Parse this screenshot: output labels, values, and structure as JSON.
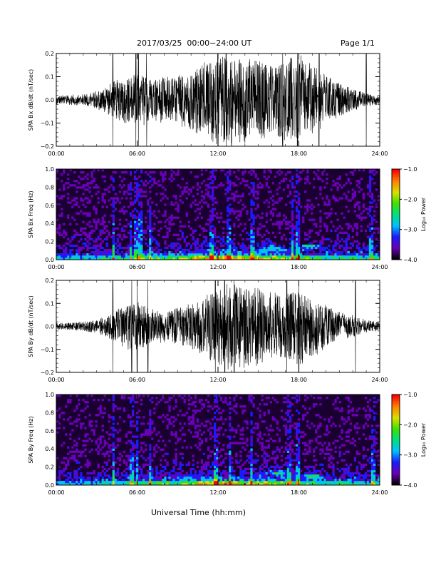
{
  "header": {
    "date_range": "2017/03/25  00:00−24:00 UT",
    "page": "Page 1/1"
  },
  "x_axis_title": "Universal Time (hh:mm)",
  "colors": {
    "trace": "#000000",
    "spec_bg": "#1a0030"
  },
  "colorbar": {
    "label": "Log₁₀ Power",
    "ticks": [
      "−1.0",
      "−2.0",
      "−3.0",
      "−4.0"
    ],
    "range": [
      -4.0,
      -1.0
    ],
    "colors": [
      "#000000",
      "#6a00b8",
      "#1a1aff",
      "#00c0ff",
      "#00e080",
      "#40e000",
      "#d8e000",
      "#ff8000",
      "#ff0000"
    ]
  },
  "chart_data": [
    {
      "type": "line",
      "ylabel": "SPA Bx dB/dt (nT/sec)",
      "ylim": [
        -0.2,
        0.2
      ],
      "yticks": [
        "0.2",
        "0.1",
        "0.0",
        "−0.1",
        "−0.2"
      ],
      "xticks": [
        "00:00",
        "06:00",
        "12:00",
        "18:00",
        "24:00"
      ],
      "envelope": {
        "hours": [
          0,
          2,
          3,
          4.2,
          5,
          6,
          7,
          8,
          9,
          10,
          11,
          12,
          13,
          14,
          15,
          16,
          17,
          18,
          19,
          20,
          21,
          22,
          23,
          24
        ],
        "amplitude": [
          0.02,
          0.025,
          0.04,
          0.08,
          0.1,
          0.12,
          0.1,
          0.1,
          0.11,
          0.13,
          0.17,
          0.2,
          0.2,
          0.19,
          0.18,
          0.16,
          0.18,
          0.2,
          0.15,
          0.11,
          0.08,
          0.05,
          0.03,
          0.02
        ]
      },
      "spikes_hours": [
        4.2,
        5.9,
        6.1,
        6.7,
        12.0,
        12.6,
        16.8,
        17.9,
        19.5,
        23.0
      ]
    },
    {
      "type": "heatmap",
      "ylabel": "SPA Bx Freq (Hz)",
      "ylim": [
        0,
        1.0
      ],
      "yticks": [
        "1.0",
        "0.8",
        "0.6",
        "0.4",
        "0.2",
        "0.0"
      ],
      "xticks": [
        "00:00",
        "06:00",
        "12:00",
        "18:00",
        "24:00"
      ],
      "bright_columns_hours": [
        4.2,
        5.5,
        5.9,
        6.2,
        7.0,
        11.5,
        12.8,
        14.6,
        17.5,
        17.9,
        23.4
      ],
      "blob_features": [
        {
          "hour": 16.0,
          "freq": 0.12
        },
        {
          "hour": 18.8,
          "freq": 0.15
        }
      ]
    },
    {
      "type": "line",
      "ylabel": "SPA By dB/dt (nT/sec)",
      "ylim": [
        -0.2,
        0.2
      ],
      "yticks": [
        "0.2",
        "0.1",
        "0.0",
        "−0.1",
        "−0.2"
      ],
      "xticks": [
        "00:00",
        "06:00",
        "12:00",
        "18:00",
        "24:00"
      ],
      "envelope": {
        "hours": [
          0,
          2,
          3,
          4.2,
          5,
          6,
          7,
          8,
          9,
          10,
          11,
          12,
          13,
          14,
          15,
          16,
          17,
          18,
          19,
          20,
          21,
          22,
          23,
          24
        ],
        "amplitude": [
          0.015,
          0.02,
          0.03,
          0.06,
          0.1,
          0.11,
          0.08,
          0.07,
          0.08,
          0.1,
          0.13,
          0.18,
          0.2,
          0.18,
          0.17,
          0.15,
          0.16,
          0.17,
          0.14,
          0.1,
          0.07,
          0.05,
          0.03,
          0.02
        ]
      },
      "spikes_hours": [
        4.2,
        5.6,
        6.0,
        6.8,
        11.8,
        12.5,
        13.2,
        17.1,
        18.0,
        22.2
      ]
    },
    {
      "type": "heatmap",
      "ylabel": "SPA By Freq (Hz)",
      "ylim": [
        0,
        1.0
      ],
      "yticks": [
        "1.0",
        "0.8",
        "0.6",
        "0.4",
        "0.2",
        "0.0"
      ],
      "xticks": [
        "00:00",
        "06:00",
        "12:00",
        "18:00",
        "24:00"
      ],
      "bright_columns_hours": [
        4.2,
        5.6,
        6.0,
        7.0,
        11.8,
        12.9,
        14.5,
        17.3,
        17.9,
        23.5
      ],
      "blob_features": [
        {
          "hour": 16.5,
          "freq": 0.13
        },
        {
          "hour": 19.0,
          "freq": 0.1
        }
      ]
    }
  ]
}
